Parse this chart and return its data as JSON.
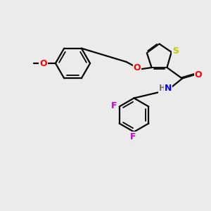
{
  "background_color": "#ebebeb",
  "atom_colors": {
    "S": "#c8c800",
    "O": "#ff0000",
    "N": "#0000ff",
    "F1": "#cc00cc",
    "F2": "#cc00cc",
    "H": "#707070",
    "C": "#000000"
  },
  "lw_single": 1.6,
  "lw_double": 1.3,
  "double_sep": 0.055,
  "font_size_atom": 8.5,
  "figsize": [
    3.0,
    3.0
  ],
  "dpi": 100
}
